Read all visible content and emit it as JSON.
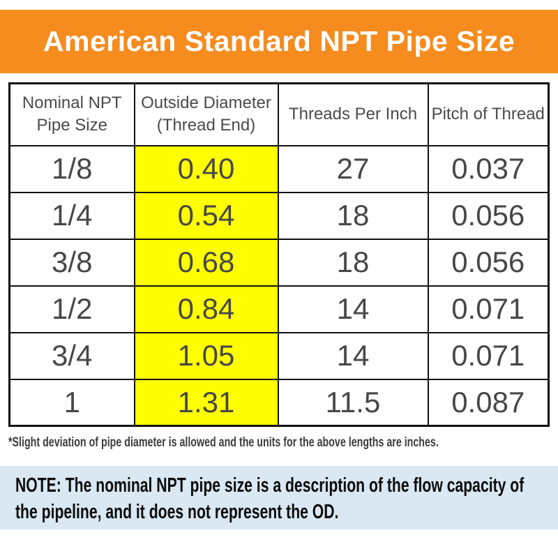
{
  "title": "American Standard NPT Pipe Size",
  "chart_data": {
    "type": "table",
    "title": "American Standard NPT Pipe Size",
    "columns": [
      "Nominal NPT\nPipe Size",
      "Outside Diameter\n(Thread End)",
      "Threads Per Inch",
      "Pitch of Thread"
    ],
    "highlight_column": "Outside Diameter (Thread End)",
    "rows": [
      [
        "1/8",
        "0.40",
        "27",
        "0.037"
      ],
      [
        "1/4",
        "0.54",
        "18",
        "0.056"
      ],
      [
        "3/8",
        "0.68",
        "18",
        "0.056"
      ],
      [
        "1/2",
        "0.84",
        "14",
        "0.071"
      ],
      [
        "3/4",
        "1.05",
        "14",
        "0.071"
      ],
      [
        "1",
        "1.31",
        "11.5",
        "0.087"
      ]
    ]
  },
  "footnote": "*Slight deviation of pipe diameter is allowed and the units for the above lengths are inches.",
  "note_lines": [
    "NOTE: The nominal NPT pipe size is a description of the flow capacity of",
    "the pipeline, and it does not represent the OD."
  ],
  "colors": {
    "banner_bg": "#F68B1E",
    "banner_text": "#FFFFFF",
    "highlight_bg": "#FFFF00",
    "note_bg": "#D9E8F2",
    "table_text": "#474747",
    "header_text": "#4A4A4A",
    "border": "#111111"
  }
}
